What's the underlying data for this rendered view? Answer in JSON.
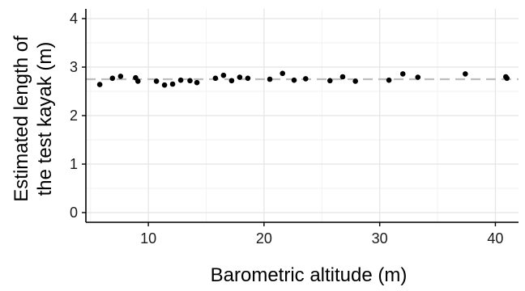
{
  "chart_data": {
    "type": "scatter",
    "title": "",
    "xlabel": "Barometric altitude (m)",
    "ylabel_lines": [
      "Estimated length of",
      "the test kayak (m)"
    ],
    "xlim": [
      4.6,
      42.0
    ],
    "ylim": [
      -0.2,
      4.2
    ],
    "x_ticks": [
      10,
      20,
      30,
      40
    ],
    "x_tick_labels": [
      "10",
      "20",
      "30",
      "40"
    ],
    "y_ticks": [
      0,
      1,
      2,
      3,
      4
    ],
    "y_tick_labels": [
      "0",
      "1",
      "2",
      "3",
      "4"
    ],
    "grid": true,
    "reference_line": {
      "y": 2.75,
      "style": "dashed",
      "color": "#bdbdbd"
    },
    "point_color": "#000000",
    "points": [
      {
        "x": 5.8,
        "y": 2.64
      },
      {
        "x": 6.9,
        "y": 2.77
      },
      {
        "x": 7.6,
        "y": 2.81
      },
      {
        "x": 8.9,
        "y": 2.78
      },
      {
        "x": 9.1,
        "y": 2.71
      },
      {
        "x": 10.7,
        "y": 2.71
      },
      {
        "x": 11.4,
        "y": 2.63
      },
      {
        "x": 12.1,
        "y": 2.65
      },
      {
        "x": 12.8,
        "y": 2.73
      },
      {
        "x": 13.6,
        "y": 2.72
      },
      {
        "x": 14.2,
        "y": 2.68
      },
      {
        "x": 15.8,
        "y": 2.77
      },
      {
        "x": 16.5,
        "y": 2.83
      },
      {
        "x": 17.2,
        "y": 2.72
      },
      {
        "x": 17.9,
        "y": 2.79
      },
      {
        "x": 18.6,
        "y": 2.77
      },
      {
        "x": 20.5,
        "y": 2.75
      },
      {
        "x": 21.6,
        "y": 2.87
      },
      {
        "x": 22.6,
        "y": 2.73
      },
      {
        "x": 23.6,
        "y": 2.76
      },
      {
        "x": 25.7,
        "y": 2.72
      },
      {
        "x": 26.8,
        "y": 2.8
      },
      {
        "x": 27.9,
        "y": 2.71
      },
      {
        "x": 30.8,
        "y": 2.73
      },
      {
        "x": 32.0,
        "y": 2.86
      },
      {
        "x": 33.3,
        "y": 2.79
      },
      {
        "x": 37.4,
        "y": 2.86
      },
      {
        "x": 40.9,
        "y": 2.8
      },
      {
        "x": 41.0,
        "y": 2.77
      }
    ]
  }
}
